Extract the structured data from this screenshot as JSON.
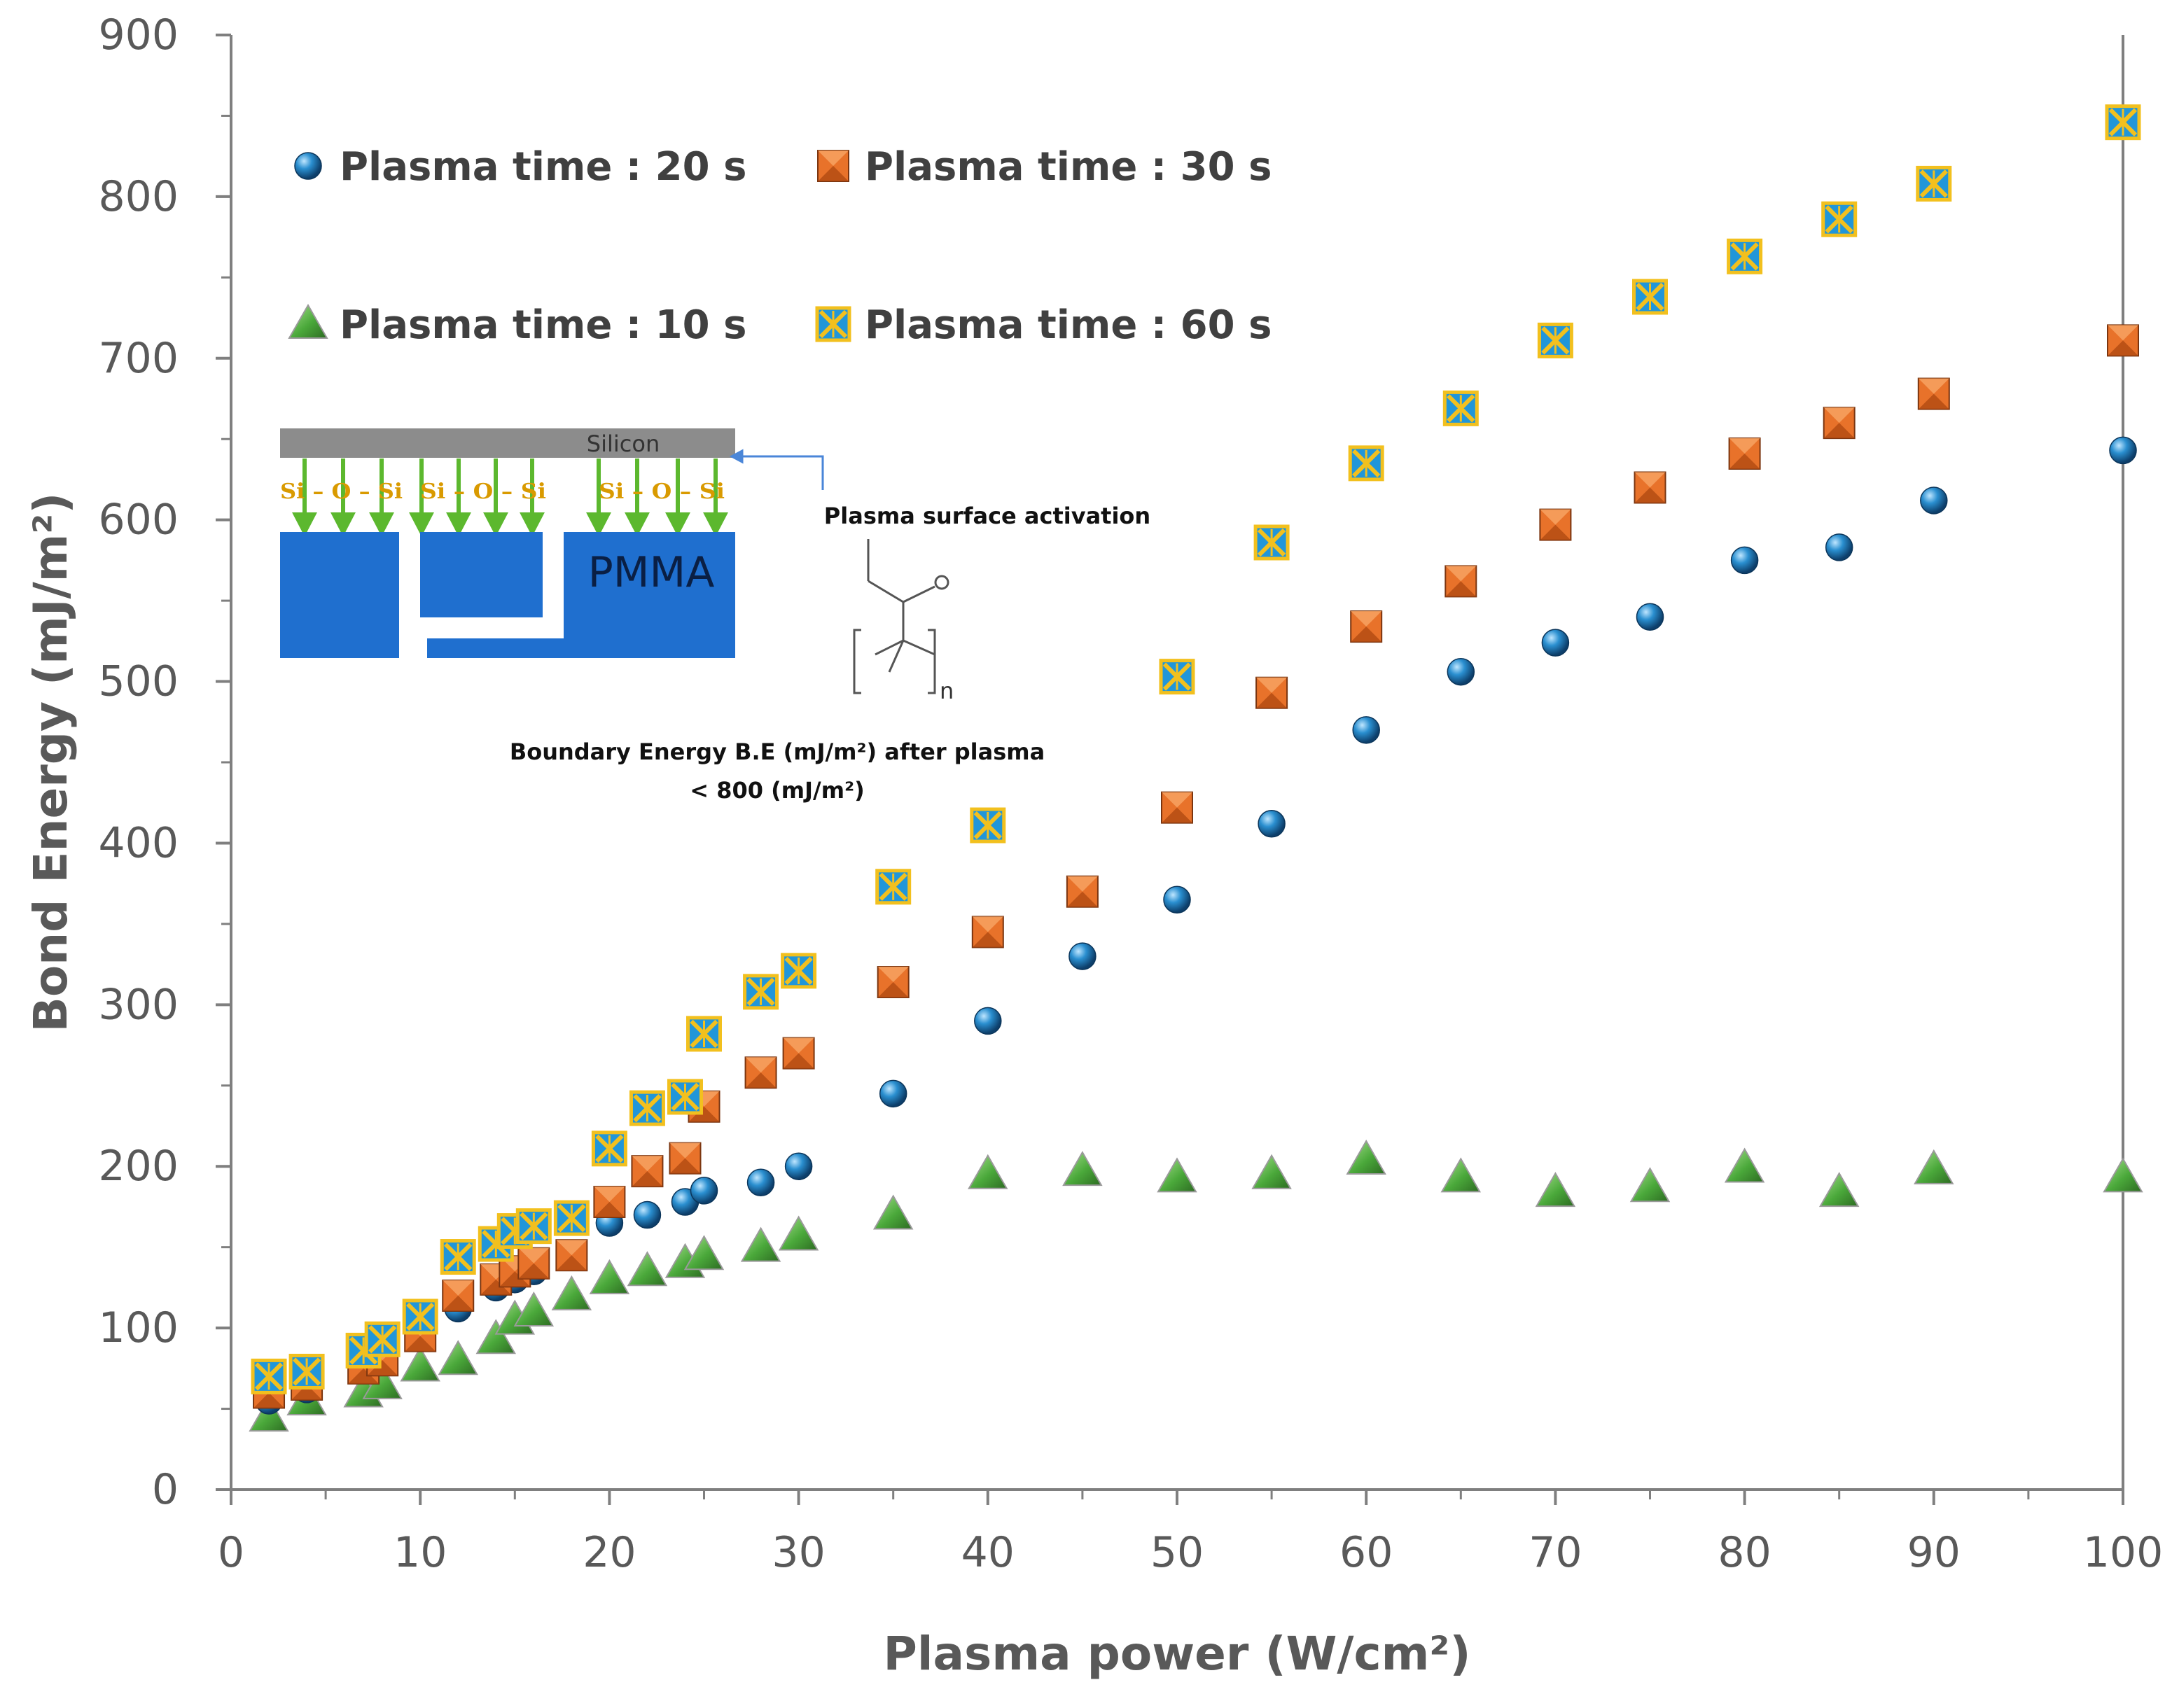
{
  "chart_data": {
    "type": "scatter",
    "xlabel": "Plasma power (W/cm²)",
    "ylabel": "Bond Energy (mJ/m²)",
    "xlim": [
      0,
      100
    ],
    "ylim": [
      0,
      900
    ],
    "xticks": [
      0,
      10,
      20,
      30,
      40,
      50,
      60,
      70,
      80,
      90,
      100
    ],
    "yticks": [
      0,
      100,
      200,
      300,
      400,
      500,
      600,
      700,
      800,
      900
    ],
    "grid": false,
    "legend_position": "top-left",
    "series": [
      {
        "name": "Plasma time : 20 s",
        "marker": "sphere",
        "color": "#1f78b4",
        "x": [
          2,
          4,
          7,
          8,
          10,
          12,
          14,
          15,
          16,
          18,
          20,
          22,
          24,
          25,
          28,
          30,
          35,
          40,
          45,
          50,
          55,
          60,
          65,
          70,
          75,
          80,
          85,
          90,
          100
        ],
        "y": [
          55,
          62,
          75,
          82,
          100,
          112,
          125,
          130,
          135,
          145,
          165,
          170,
          178,
          185,
          190,
          200,
          245,
          290,
          330,
          365,
          412,
          470,
          506,
          524,
          540,
          575,
          583,
          612,
          643
        ]
      },
      {
        "name": "Plasma time : 30 s",
        "marker": "square",
        "color": "#e8722a",
        "x": [
          2,
          4,
          7,
          8,
          10,
          12,
          14,
          15,
          16,
          18,
          20,
          22,
          24,
          25,
          28,
          30,
          35,
          40,
          45,
          50,
          55,
          60,
          65,
          70,
          75,
          80,
          85,
          90,
          100
        ],
        "y": [
          60,
          65,
          75,
          80,
          95,
          120,
          130,
          135,
          140,
          145,
          178,
          197,
          205,
          237,
          258,
          270,
          314,
          345,
          370,
          422,
          493,
          534,
          562,
          597,
          620,
          641,
          660,
          678,
          711
        ]
      },
      {
        "name": "Plasma time : 10 s",
        "marker": "triangle",
        "color": "#4caf3a",
        "x": [
          2,
          4,
          7,
          8,
          10,
          12,
          14,
          15,
          16,
          18,
          20,
          22,
          24,
          25,
          28,
          30,
          35,
          40,
          45,
          50,
          55,
          60,
          65,
          70,
          75,
          80,
          85,
          90,
          100
        ],
        "y": [
          45,
          55,
          60,
          65,
          76,
          80,
          93,
          105,
          110,
          120,
          130,
          135,
          140,
          145,
          150,
          157,
          170,
          195,
          197,
          193,
          195,
          204,
          193,
          184,
          187,
          199,
          184,
          198,
          193
        ]
      },
      {
        "name": "Plasma time : 60 s",
        "marker": "x-square",
        "color": "#2196d9",
        "x": [
          2,
          4,
          7,
          8,
          10,
          12,
          14,
          15,
          16,
          18,
          20,
          22,
          24,
          25,
          28,
          30,
          35,
          40,
          50,
          55,
          60,
          65,
          70,
          75,
          80,
          85,
          90,
          100
        ],
        "y": [
          70,
          73,
          86,
          93,
          107,
          144,
          152,
          160,
          163,
          168,
          211,
          236,
          243,
          282,
          308,
          321,
          373,
          411,
          503,
          586,
          635,
          669,
          711,
          738,
          763,
          786,
          808,
          846
        ]
      }
    ],
    "inset": {
      "top_label": "Silicon",
      "bond_labels": [
        "Si – O – Si",
        "Si – O – Si",
        "Si – O – Si"
      ],
      "block_label": "PMMA",
      "arrow_label": "Plasma surface activation",
      "subscript": "n",
      "note_line1": "Boundary Energy B.E (mJ/m²) after plasma",
      "note_line2": "< 800 (mJ/m²)"
    }
  }
}
